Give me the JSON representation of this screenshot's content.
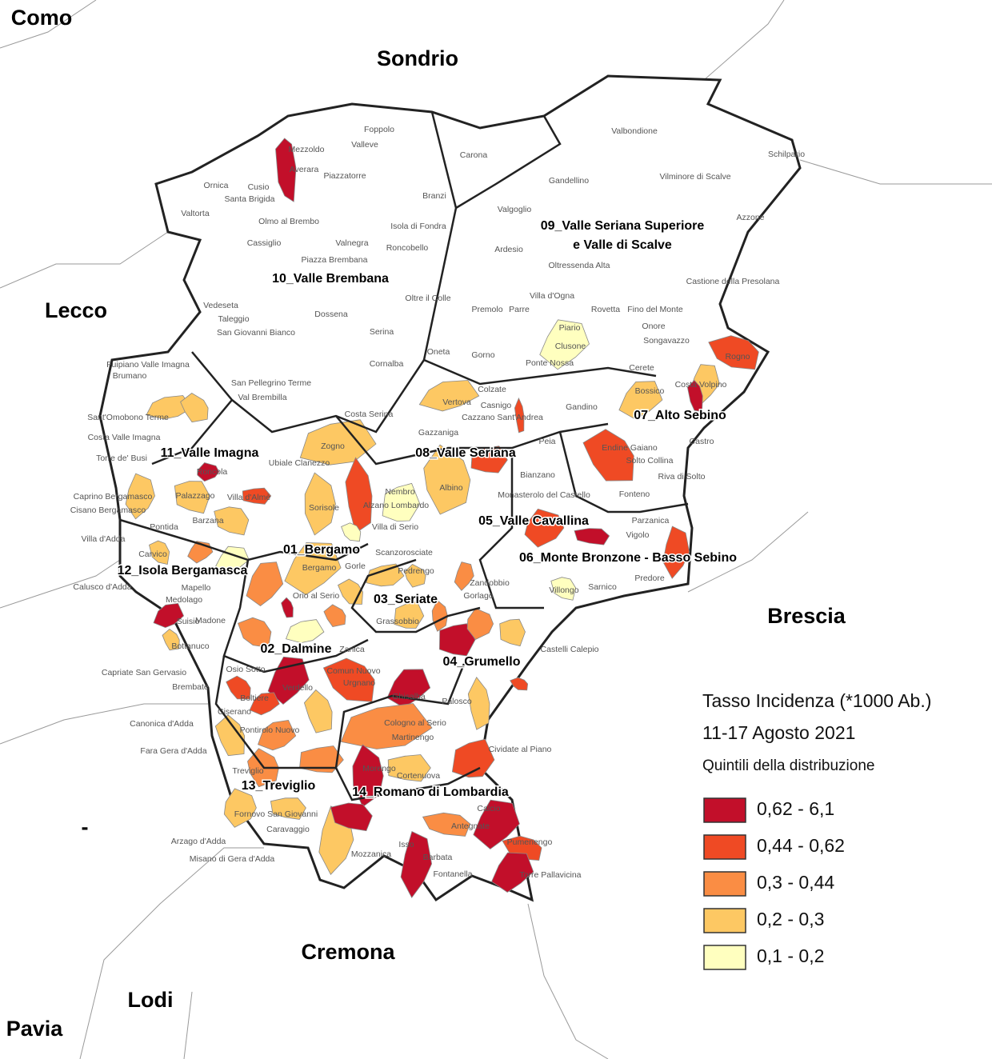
{
  "map": {
    "provinces": [
      "Como",
      "Sondrio",
      "Lecco",
      "Brescia",
      "Cremona",
      "Lodi",
      "Pavia",
      "-"
    ],
    "districts": [
      {
        "lines": [
          "01_Bergamo"
        ]
      },
      {
        "lines": [
          "02_Dalmine"
        ]
      },
      {
        "lines": [
          "03_Seriate"
        ]
      },
      {
        "lines": [
          "04_Grumello"
        ]
      },
      {
        "lines": [
          "05_Valle Cavallina"
        ]
      },
      {
        "lines": [
          "06_Monte Bronzone - Basso Sebino"
        ]
      },
      {
        "lines": [
          "07_Alto Sebino"
        ]
      },
      {
        "lines": [
          "08_Valle Seriana"
        ]
      },
      {
        "lines": [
          "09_Valle Seriana Superiore",
          "e Valle di Scalve"
        ]
      },
      {
        "lines": [
          "10_Valle Brembana"
        ]
      },
      {
        "lines": [
          "11_Valle Imagna"
        ]
      },
      {
        "lines": [
          "12_Isola Bergamasca"
        ]
      },
      {
        "lines": [
          "13_Treviglio"
        ]
      },
      {
        "lines": [
          "14_Romano di Lombardia"
        ]
      }
    ],
    "municipalities": [
      "Foppolo",
      "Mezzoldo",
      "Valleve",
      "Carona",
      "Averara",
      "Piazzatorre",
      "Ornica",
      "Cusio",
      "Santa Brigida",
      "Branzi",
      "Valtorta",
      "Olmo al Brembo",
      "Isola di Fondra",
      "Cassiglio",
      "Valnegra",
      "Roncobello",
      "Piazza Brembana",
      "Valbondione",
      "Schilpario",
      "Gandellino",
      "Vilminore di Scalve",
      "Valgoglio",
      "Azzone",
      "Ardesio",
      "Oltressenda Alta",
      "Castione della Presolana",
      "Vedeseta",
      "Taleggio",
      "San Giovanni Bianco",
      "Dossena",
      "Serina",
      "Oltre il Colle",
      "Villa d'Ogna",
      "Premolo",
      "Parre",
      "Rovetta",
      "Fino del Monte",
      "Piario",
      "Onore",
      "Clusone",
      "Songavazzo",
      "Oneta",
      "Gorno",
      "Ponte Nossa",
      "Cerete",
      "Rogno",
      "Fuipiano Valle Imagna",
      "Brumano",
      "San Pellegrino Terme",
      "Val Brembilla",
      "Costa Serina",
      "Cornalba",
      "Vertova",
      "Colzate",
      "Gandino",
      "Bossico",
      "Costa Volpino",
      "Sant'Omobono Terme",
      "Costa Valle Imagna",
      "Zogno",
      "Gazzaniga",
      "Casnigo",
      "Cazzano Sant'Andrea",
      "Peia",
      "Endine Gaiano",
      "Castro",
      "Torre de' Busi",
      "Ubiale Clanezzo",
      "Roncola",
      "Solto Collina",
      "Riva di Solto",
      "Nembro",
      "Albino",
      "Bianzano",
      "Caprino Bergamasco",
      "Cisano Bergamasco",
      "Palazzago",
      "Villa d'Almè",
      "Sorisole",
      "Alzano Lombardo",
      "Monasterolo del Castello",
      "Fonteno",
      "Villa di Serio",
      "Parzanica",
      "Vigolo",
      "Pontida",
      "Barzana",
      "Villa d'Adda",
      "Carvico",
      "Scanzorosciate",
      "Predore",
      "Bergamo",
      "Gorle",
      "Pedrengo",
      "Calusco d'Adda",
      "Zandobbio",
      "Sarnico",
      "Mapello",
      "Orio al Serio",
      "Gorlago",
      "Villongo",
      "Medolago",
      "Suisio",
      "Madone",
      "Grassobbio",
      "Castelli Calepio",
      "Zanica",
      "Bottanuco",
      "Capriate San Gervasio",
      "Osio Sotto",
      "Comun Nuovo",
      "Brembate",
      "Verdello",
      "Urgnano",
      "Ghisalba",
      "Palosco",
      "Boltiere",
      "Canonica d'Adda",
      "Ciserano",
      "Cologno al Serio",
      "Pontirolo Nuovo",
      "Martinengo",
      "Cividate al Piano",
      "Fara Gera d'Adda",
      "Treviglio",
      "Morengo",
      "Cortenuova",
      "Calcio",
      "Fornovo San Giovanni",
      "Caravaggio",
      "Antegnate",
      "Arzago d'Adda",
      "Pumenengo",
      "Isso",
      "Misano di Gera d'Adda",
      "Mozzanica",
      "Barbata",
      "Fontanella",
      "Torre Pallavicina"
    ],
    "legend": {
      "title": "Tasso Incidenza (*1000 Ab.)",
      "subtitle": "11-17 Agosto 2021",
      "caption": "Quintili della distribuzione",
      "classes": [
        {
          "label": "0,62 - 6,1",
          "color": "#c20f2a"
        },
        {
          "label": "0,44 - 0,62",
          "color": "#ef4a24"
        },
        {
          "label": "0,3 - 0,44",
          "color": "#fa8d44"
        },
        {
          "label": "0,2 - 0,3",
          "color": "#fdc863"
        },
        {
          "label": "0,1 - 0,2",
          "color": "#ffffbf"
        }
      ]
    }
  }
}
